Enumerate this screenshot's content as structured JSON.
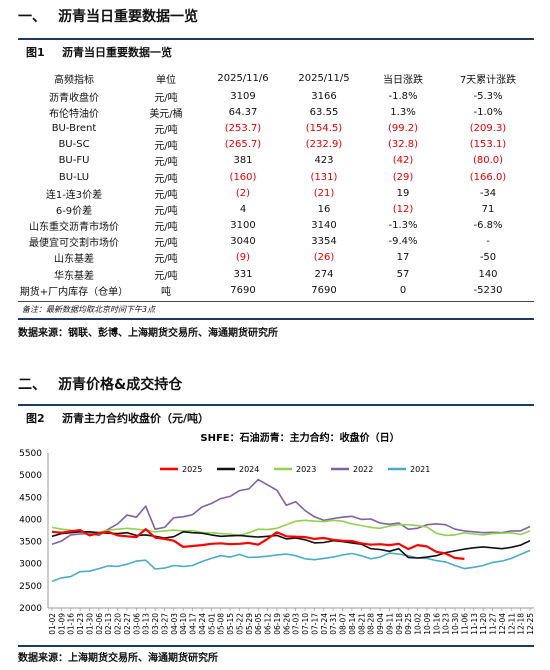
{
  "section1": {
    "num": "一、",
    "title": "沥青当日重要数据一览"
  },
  "figure1": {
    "label": "图1",
    "title": "沥青当日重要数据一览"
  },
  "table": {
    "headers": [
      "高频指标",
      "单位",
      "2025/11/6",
      "2025/11/5",
      "当日涨跌",
      "7天累计涨跌"
    ],
    "rows": [
      [
        "沥青收盘价",
        "元/吨",
        "3109",
        "3166",
        "-1.8%",
        "-5.3%"
      ],
      [
        "布伦特油价",
        "美元/桶",
        "64.37",
        "63.55",
        "1.3%",
        "-1.0%"
      ],
      [
        "BU-Brent",
        "元/吨",
        "(253.7)",
        "(154.5)",
        "(99.2)",
        "(209.3)"
      ],
      [
        "BU-SC",
        "元/吨",
        "(265.7)",
        "(232.9)",
        "(32.8)",
        "(153.1)"
      ],
      [
        "BU-FU",
        "元/吨",
        "381",
        "423",
        "(42)",
        "(80.0)"
      ],
      [
        "BU-LU",
        "元/吨",
        "(160)",
        "(131)",
        "(29)",
        "(166.0)"
      ],
      [
        "连1-连3价差",
        "元/吨",
        "(2)",
        "(21)",
        "19",
        "-34"
      ],
      [
        "6-9价差",
        "元/吨",
        "4",
        "16",
        "(12)",
        "71"
      ],
      [
        "山东重交沥青市场价",
        "元/吨",
        "3100",
        "3140",
        "-1.3%",
        "-6.8%"
      ],
      [
        "最便宜可交割市场价",
        "元/吨",
        "3040",
        "3354",
        "-9.4%",
        "-"
      ],
      [
        "山东基差",
        "元/吨",
        "(9)",
        "(26)",
        "17",
        "-50"
      ],
      [
        "华东基差",
        "元/吨",
        "331",
        "274",
        "57",
        "140"
      ],
      [
        "期货+厂内库存（仓单）",
        "吨",
        "7690",
        "7690",
        "0",
        "-5230"
      ]
    ]
  },
  "note": "备注：最新数据均取北京时间下午3点",
  "source1": "数据来源：钢联、彭博、上海期货交易所、海通期货研究所",
  "section2": {
    "num": "二、",
    "title": "沥青价格&成交持仓"
  },
  "figure2": {
    "label": "图2",
    "title": "沥青主力合约收盘价（元/吨）"
  },
  "chart_data": {
    "type": "line",
    "title": "SHFE：石油沥青：主力合约：收盘价（日）",
    "ylim": [
      2000,
      5500
    ],
    "yticks": [
      2000,
      2500,
      3000,
      3500,
      4000,
      4500,
      5000,
      5500
    ],
    "xticks": [
      "01-02",
      "01-09",
      "01-16",
      "01-23",
      "01-30",
      "02-06",
      "02-13",
      "02-20",
      "02-27",
      "03-06",
      "03-13",
      "03-20",
      "03-27",
      "04-03",
      "04-10",
      "04-17",
      "04-24",
      "05-01",
      "05-08",
      "05-15",
      "05-22",
      "05-29",
      "06-05",
      "06-12",
      "06-19",
      "06-26",
      "07-03",
      "07-10",
      "07-17",
      "07-24",
      "07-31",
      "08-07",
      "08-14",
      "08-21",
      "08-28",
      "09-04",
      "09-11",
      "09-18",
      "09-25",
      "10-02",
      "10-09",
      "10-16",
      "10-23",
      "10-30",
      "11-06",
      "11-13",
      "11-20",
      "11-27",
      "12-04",
      "12-11",
      "12-18",
      "12-25"
    ],
    "x_week_index": [
      0,
      1,
      2,
      3,
      4,
      5,
      6,
      7,
      8,
      9,
      10,
      11,
      12,
      13,
      14,
      15,
      16,
      17,
      18,
      19,
      20,
      21,
      22,
      23,
      24,
      25,
      26,
      27,
      28,
      29,
      30,
      31,
      32,
      33,
      34,
      35,
      36,
      37,
      38,
      39,
      40,
      41,
      42,
      43,
      44,
      45,
      46,
      47,
      48,
      49,
      50,
      51
    ],
    "grid": false,
    "legend_position": "top",
    "series": [
      {
        "name": "2025",
        "color": "#ff0000",
        "values": [
          3720,
          3700,
          3730,
          3760,
          3640,
          3690,
          3720,
          3640,
          3620,
          3600,
          3780,
          3590,
          3560,
          3520,
          3380,
          3400,
          3420,
          3450,
          3460,
          3440,
          3450,
          3470,
          3430,
          3560,
          3710,
          3620,
          3610,
          3600,
          3560,
          3580,
          3540,
          3520,
          3510,
          3460,
          3430,
          3440,
          3420,
          3450,
          3330,
          3420,
          3390,
          3270,
          3230,
          3130,
          3109,
          null,
          null,
          null,
          null,
          null,
          null,
          null
        ]
      },
      {
        "name": "2024",
        "color": "#111111",
        "values": [
          3620,
          3680,
          3700,
          3720,
          3720,
          3700,
          3690,
          3680,
          3700,
          3640,
          3650,
          3620,
          3580,
          3610,
          3720,
          3700,
          3690,
          3650,
          3620,
          3630,
          3640,
          3620,
          3600,
          3620,
          3640,
          3560,
          3580,
          3540,
          3470,
          3480,
          3520,
          3500,
          3470,
          3440,
          3340,
          3320,
          3280,
          3340,
          3140,
          3130,
          3150,
          3180,
          3250,
          3290,
          3330,
          3360,
          3380,
          3360,
          3340,
          3370,
          3420,
          3520
        ]
      },
      {
        "name": "2023",
        "color": "#92d050",
        "values": [
          3820,
          3780,
          3760,
          3720,
          3700,
          3710,
          3760,
          3780,
          3800,
          3780,
          3760,
          3720,
          3740,
          3760,
          3740,
          3750,
          3700,
          3700,
          3680,
          3670,
          3640,
          3700,
          3780,
          3770,
          3800,
          3880,
          3960,
          3980,
          3960,
          3950,
          3980,
          3960,
          3900,
          3860,
          3820,
          3800,
          3850,
          3880,
          3880,
          3860,
          3830,
          3690,
          3640,
          3650,
          3700,
          3670,
          3650,
          3680,
          3690,
          3700,
          3660,
          3740
        ]
      },
      {
        "name": "2022",
        "color": "#7e63a6",
        "values": [
          3440,
          3510,
          3650,
          3670,
          3680,
          3640,
          3780,
          3900,
          4100,
          4050,
          4300,
          3780,
          3820,
          4040,
          4060,
          4110,
          4280,
          4360,
          4470,
          4520,
          4650,
          4690,
          4900,
          4780,
          4660,
          4320,
          4400,
          4200,
          4060,
          3980,
          4020,
          4050,
          4070,
          4000,
          4010,
          3920,
          3890,
          3920,
          3780,
          3800,
          3880,
          3900,
          3880,
          3780,
          3740,
          3720,
          3700,
          3710,
          3700,
          3740,
          3740,
          3840
        ]
      },
      {
        "name": "2021",
        "color": "#4bacc6",
        "values": [
          2600,
          2680,
          2710,
          2820,
          2830,
          2890,
          2950,
          2940,
          2990,
          3060,
          3080,
          2880,
          2900,
          2960,
          2940,
          2960,
          3050,
          3120,
          3180,
          3150,
          3210,
          3140,
          3150,
          3170,
          3200,
          3220,
          3180,
          3110,
          3090,
          3120,
          3150,
          3200,
          3230,
          3180,
          3110,
          3150,
          3240,
          3220,
          3180,
          3130,
          3120,
          3070,
          3040,
          2960,
          2890,
          2920,
          2960,
          3030,
          3060,
          3120,
          3210,
          3300
        ]
      }
    ]
  },
  "source2": "数据来源：上海期货交易所、海通期货研究所"
}
